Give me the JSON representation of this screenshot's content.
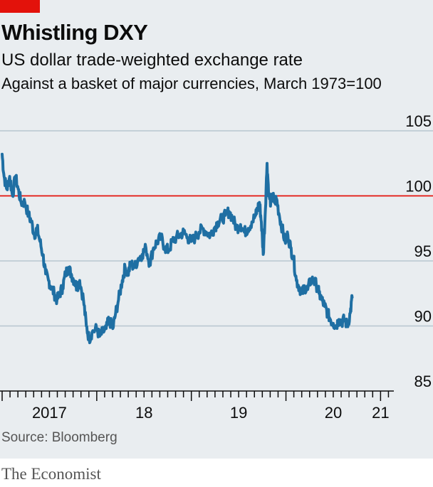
{
  "header": {
    "title": "Whistling DXY",
    "subtitle": "US dollar trade-weighted exchange rate",
    "description": "Against a basket of major currencies, March 1973=100"
  },
  "footer": {
    "source": "Source: Bloomberg",
    "brand": "The Economist"
  },
  "colors": {
    "background": "#e9edf0",
    "line": "#1f6fa3",
    "reference_line": "#e3120b",
    "gridline": "#b7c6cf",
    "brand_red": "#e3120b"
  },
  "chart_data": {
    "type": "line",
    "title": "Whistling DXY",
    "subtitle": "US dollar trade-weighted exchange rate",
    "ylabel": "Against a basket of major currencies, March 1973=100",
    "xlabel": "",
    "ylim": [
      85,
      105
    ],
    "y_ticks": [
      85,
      90,
      95,
      100,
      105
    ],
    "x_ticks": [
      "2017",
      "18",
      "19",
      "20",
      "21"
    ],
    "reference_line": 100,
    "grid": true,
    "x_unit": "year (decimal)",
    "series": [
      {
        "values": [
          [
            2017.0,
            103.2
          ],
          [
            2017.02,
            101.5
          ],
          [
            2017.05,
            100.5
          ],
          [
            2017.08,
            101.5
          ],
          [
            2017.11,
            100.0
          ],
          [
            2017.14,
            101.5
          ],
          [
            2017.17,
            100.5
          ],
          [
            2017.2,
            99.5
          ],
          [
            2017.24,
            99.5
          ],
          [
            2017.28,
            98.5
          ],
          [
            2017.31,
            98.0
          ],
          [
            2017.34,
            97.0
          ],
          [
            2017.37,
            97.5
          ],
          [
            2017.4,
            96.5
          ],
          [
            2017.43,
            95.5
          ],
          [
            2017.46,
            94.0
          ],
          [
            2017.49,
            93.5
          ],
          [
            2017.52,
            93.0
          ],
          [
            2017.55,
            92.5
          ],
          [
            2017.58,
            92.0
          ],
          [
            2017.61,
            92.5
          ],
          [
            2017.64,
            93.0
          ],
          [
            2017.67,
            94.0
          ],
          [
            2017.7,
            94.5
          ],
          [
            2017.73,
            94.0
          ],
          [
            2017.76,
            93.5
          ],
          [
            2017.79,
            93.0
          ],
          [
            2017.82,
            93.5
          ],
          [
            2017.86,
            92.0
          ],
          [
            2017.89,
            90.0
          ],
          [
            2017.92,
            89.0
          ],
          [
            2017.95,
            89.5
          ],
          [
            2018.0,
            89.8
          ],
          [
            2018.03,
            89.2
          ],
          [
            2018.06,
            89.5
          ],
          [
            2018.1,
            89.8
          ],
          [
            2018.13,
            90.5
          ],
          [
            2018.17,
            89.8
          ],
          [
            2018.2,
            91.0
          ],
          [
            2018.23,
            92.0
          ],
          [
            2018.27,
            93.5
          ],
          [
            2018.3,
            94.5
          ],
          [
            2018.33,
            94.0
          ],
          [
            2018.36,
            94.8
          ],
          [
            2018.4,
            94.5
          ],
          [
            2018.44,
            95.2
          ],
          [
            2018.48,
            95.5
          ],
          [
            2018.52,
            96.0
          ],
          [
            2018.56,
            94.8
          ],
          [
            2018.6,
            96.0
          ],
          [
            2018.64,
            96.5
          ],
          [
            2018.68,
            96.8
          ],
          [
            2018.72,
            96.0
          ],
          [
            2018.76,
            95.8
          ],
          [
            2018.8,
            96.5
          ],
          [
            2018.84,
            96.8
          ],
          [
            2018.88,
            97.0
          ],
          [
            2018.92,
            97.2
          ],
          [
            2018.96,
            96.8
          ],
          [
            2019.0,
            96.5
          ],
          [
            2019.04,
            96.8
          ],
          [
            2019.08,
            97.2
          ],
          [
            2019.12,
            97.5
          ],
          [
            2019.16,
            97.2
          ],
          [
            2019.2,
            97.0
          ],
          [
            2019.24,
            97.5
          ],
          [
            2019.28,
            98.0
          ],
          [
            2019.32,
            98.2
          ],
          [
            2019.36,
            98.5
          ],
          [
            2019.4,
            98.8
          ],
          [
            2019.44,
            98.2
          ],
          [
            2019.48,
            97.5
          ],
          [
            2019.52,
            97.8
          ],
          [
            2019.56,
            97.2
          ],
          [
            2019.6,
            97.5
          ],
          [
            2019.64,
            98.0
          ],
          [
            2019.68,
            98.5
          ],
          [
            2019.7,
            99.0
          ],
          [
            2019.72,
            99.5
          ],
          [
            2019.74,
            98.0
          ],
          [
            2019.76,
            95.5
          ],
          [
            2019.78,
            98.5
          ],
          [
            2019.8,
            102.5
          ],
          [
            2019.82,
            100.0
          ],
          [
            2019.84,
            99.5
          ],
          [
            2019.86,
            100.0
          ],
          [
            2019.88,
            99.5
          ],
          [
            2019.9,
            99.8
          ],
          [
            2019.93,
            98.5
          ],
          [
            2019.96,
            97.5
          ],
          [
            2019.99,
            96.5
          ],
          [
            2020.02,
            97.0
          ],
          [
            2020.05,
            96.0
          ],
          [
            2020.08,
            95.2
          ],
          [
            2020.11,
            93.5
          ],
          [
            2020.14,
            93.0
          ],
          [
            2020.17,
            92.5
          ],
          [
            2020.2,
            93.0
          ],
          [
            2020.23,
            92.8
          ],
          [
            2020.26,
            93.5
          ],
          [
            2020.29,
            93.5
          ],
          [
            2020.32,
            93.2
          ],
          [
            2020.35,
            92.5
          ],
          [
            2020.38,
            92.0
          ],
          [
            2020.41,
            91.5
          ],
          [
            2020.44,
            91.0
          ],
          [
            2020.47,
            90.5
          ],
          [
            2020.5,
            90.2
          ],
          [
            2020.53,
            90.0
          ],
          [
            2020.56,
            90.5
          ],
          [
            2020.59,
            90.3
          ],
          [
            2020.62,
            90.5
          ],
          [
            2020.65,
            90.0
          ],
          [
            2020.68,
            91.0
          ],
          [
            2020.7,
            92.2
          ]
        ]
      }
    ]
  }
}
